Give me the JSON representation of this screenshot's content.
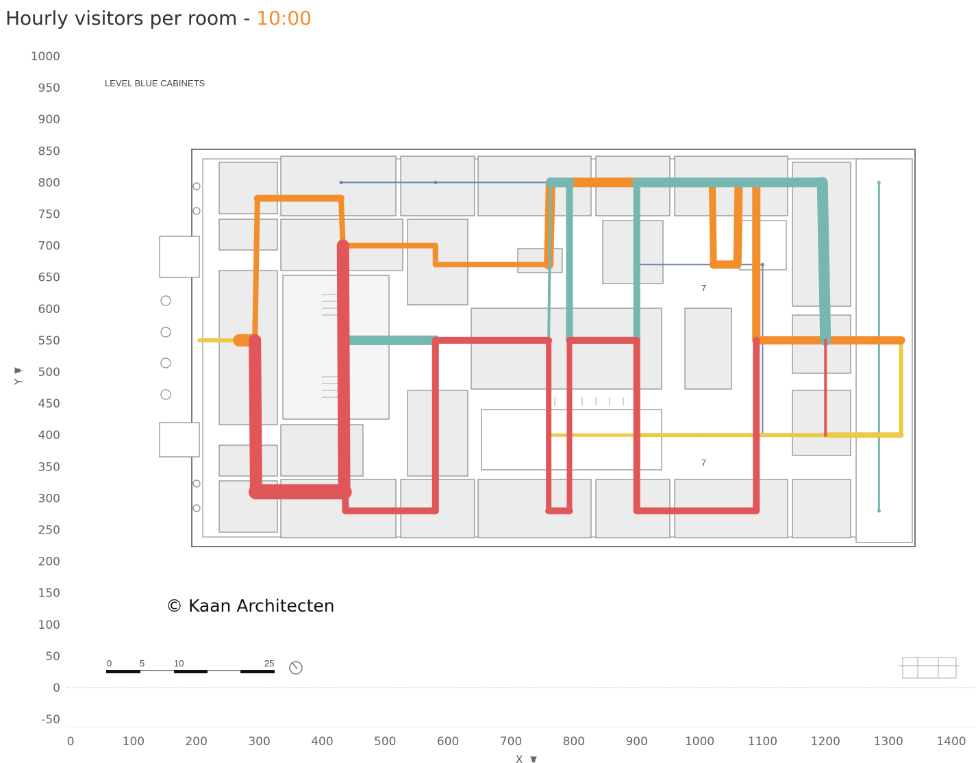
{
  "title": {
    "main": "Hourly visitors per room",
    "separator": " - ",
    "time": "10:00"
  },
  "colors": {
    "title_time": "#f28e2b",
    "orange": "#f28e2b",
    "teal": "#76b7b2",
    "red": "#e15759",
    "yellow": "#edc948",
    "blue": "#6a84a8"
  },
  "floorplan": {
    "level_label": "LEVEL BLUE CABINETS",
    "copyright": "© Kaan Architecten",
    "room_numbers": [
      "7",
      "7"
    ],
    "scale_labels": [
      "0",
      "5",
      "10",
      "25"
    ],
    "north_icon": "compass-icon"
  },
  "chart_data": {
    "type": "line",
    "xlabel": "X",
    "ylabel": "Y",
    "xlim": [
      -5,
      1410
    ],
    "ylim": [
      -60,
      1010
    ],
    "x_ticks": [
      "0",
      "100",
      "200",
      "300",
      "400",
      "500",
      "600",
      "700",
      "800",
      "900",
      "1000",
      "1100",
      "1200",
      "1300",
      "1400"
    ],
    "y_ticks": [
      "1000",
      "950",
      "900",
      "850",
      "800",
      "750",
      "700",
      "650",
      "600",
      "550",
      "500",
      "450",
      "400",
      "350",
      "300",
      "250",
      "200",
      "150",
      "100",
      "50",
      "0",
      "-50"
    ],
    "reference_line_y": 0,
    "series": [
      {
        "color": "#6a84a8",
        "width": [
          2,
          2,
          2,
          2,
          2,
          2,
          2
        ],
        "points": [
          [
            430,
            800
          ],
          [
            580,
            800
          ],
          [
            900,
            800
          ],
          [
            900,
            670
          ],
          [
            1100,
            670
          ],
          [
            1100,
            400
          ],
          [
            1200,
            400
          ]
        ]
      },
      {
        "color": "#6a84a8",
        "width": [
          2,
          2,
          2
        ],
        "points": [
          [
            1200,
            400
          ],
          [
            1285,
            400
          ],
          [
            1285,
            280
          ]
        ]
      },
      {
        "color": "#76b7b2",
        "width": [
          3,
          3
        ],
        "points": [
          [
            1285,
            280
          ],
          [
            1285,
            800
          ]
        ]
      },
      {
        "color": "#edc948",
        "width": [
          6,
          6
        ],
        "points": [
          [
            205,
            550
          ],
          [
            268,
            550
          ]
        ]
      },
      {
        "color": "#edc948",
        "width": [
          5,
          6,
          6,
          8,
          6
        ],
        "points": [
          [
            765,
            400
          ],
          [
            900,
            400
          ],
          [
            1000,
            400
          ],
          [
            1200,
            400
          ],
          [
            1320,
            400
          ],
          [
            1320,
            550
          ]
        ]
      },
      {
        "color": "#f28e2b",
        "width": [
          18,
          8,
          10,
          8,
          8,
          8,
          8,
          14,
          14,
          10,
          12
        ],
        "points": [
          [
            268,
            550
          ],
          [
            293,
            550
          ],
          [
            297,
            775
          ],
          [
            430,
            775
          ],
          [
            433,
            700
          ],
          [
            580,
            700
          ],
          [
            580,
            670
          ],
          [
            760,
            670
          ],
          [
            763,
            800
          ],
          [
            1020,
            800
          ],
          [
            1022,
            670
          ],
          [
            1060,
            670
          ],
          [
            1062,
            800
          ],
          [
            1090,
            800
          ],
          [
            1090,
            550
          ],
          [
            1200,
            550
          ],
          [
            1320,
            550
          ]
        ]
      },
      {
        "color": "#76b7b2",
        "width": [
          14,
          14,
          10,
          8,
          8,
          10,
          16,
          14
        ],
        "points": [
          [
            440,
            550
          ],
          [
            580,
            550
          ],
          [
            580,
            550
          ]
        ]
      },
      {
        "color": "#76b7b2",
        "width": [
          4,
          14,
          10,
          10,
          10,
          14,
          16,
          12
        ],
        "points": [
          [
            760,
            550
          ],
          [
            763,
            800
          ],
          [
            793,
            800
          ],
          [
            793,
            550
          ],
          [
            900,
            550
          ],
          [
            900,
            800
          ],
          [
            1195,
            800
          ],
          [
            1200,
            550
          ]
        ]
      },
      {
        "color": "#e15759",
        "width": [
          18,
          22,
          18,
          10,
          10,
          10,
          10,
          8,
          10,
          8,
          10
        ],
        "points": [
          [
            293,
            550
          ],
          [
            295,
            310
          ],
          [
            435,
            310
          ],
          [
            433,
            700
          ],
          [
            437,
            280
          ],
          [
            580,
            280
          ],
          [
            580,
            550
          ],
          [
            760,
            550
          ],
          [
            760,
            280
          ],
          [
            793,
            280
          ],
          [
            793,
            550
          ],
          [
            900,
            550
          ],
          [
            900,
            280
          ],
          [
            1090,
            280
          ],
          [
            1090,
            550
          ]
        ]
      },
      {
        "color": "#e15759",
        "width": [
          4,
          12
        ],
        "points": [
          [
            1200,
            400
          ],
          [
            1200,
            550
          ]
        ]
      }
    ]
  }
}
